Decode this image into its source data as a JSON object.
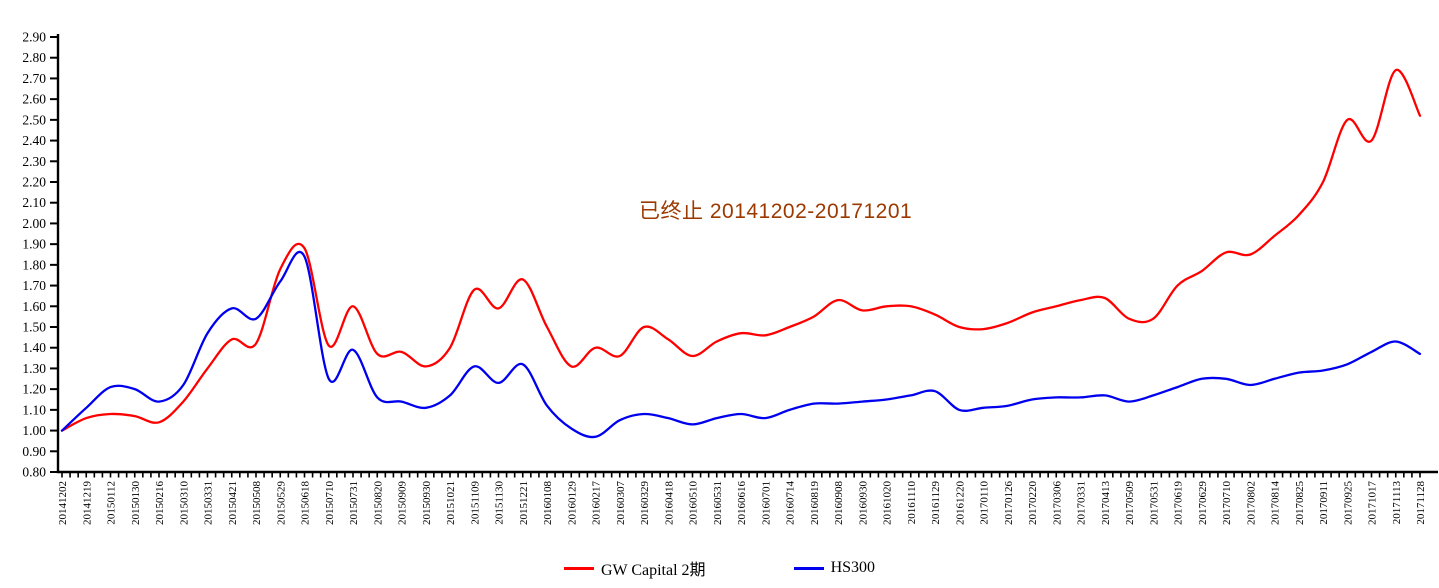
{
  "chart_data": {
    "type": "line",
    "title": "",
    "grid": false,
    "legend_position": "bottom-center",
    "x_label_rotation": -90,
    "ylim": [
      0.8,
      2.9
    ],
    "y_tick_step": 0.1,
    "y_ticks": [
      "2.90",
      "2.80",
      "2.70",
      "2.60",
      "2.50",
      "2.40",
      "2.30",
      "2.20",
      "2.10",
      "2.00",
      "1.90",
      "1.80",
      "1.70",
      "1.60",
      "1.50",
      "1.40",
      "1.30",
      "1.20",
      "1.10",
      "1.00",
      "0.90",
      "0.80"
    ],
    "categories": [
      "20141202",
      "20141219",
      "20150112",
      "20150130",
      "20150216",
      "20150310",
      "20150331",
      "20150421",
      "20150508",
      "20150529",
      "20150618",
      "20150710",
      "20150731",
      "20150820",
      "20150909",
      "20150930",
      "20151021",
      "20151109",
      "20151130",
      "20151221",
      "20160108",
      "20160129",
      "20160217",
      "20160307",
      "20160329",
      "20160418",
      "20160510",
      "20160531",
      "20160616",
      "20160701",
      "20160714",
      "20160819",
      "20160908",
      "20160930",
      "20161020",
      "20161110",
      "20161129",
      "20161220",
      "20170110",
      "20170126",
      "20170220",
      "20170306",
      "20170331",
      "20170413",
      "20170509",
      "20170531",
      "20170619",
      "20170629",
      "20170710",
      "20170802",
      "20170814",
      "20170825",
      "20170911",
      "20170925",
      "20171017",
      "20171113",
      "20171128"
    ],
    "series": [
      {
        "name": "GW Capital 2期",
        "color": "#FF0000",
        "values": [
          1.0,
          1.06,
          1.08,
          1.07,
          1.04,
          1.14,
          1.3,
          1.44,
          1.42,
          1.78,
          1.88,
          1.41,
          1.6,
          1.37,
          1.38,
          1.31,
          1.4,
          1.68,
          1.59,
          1.73,
          1.5,
          1.31,
          1.4,
          1.36,
          1.5,
          1.44,
          1.36,
          1.43,
          1.47,
          1.46,
          1.5,
          1.55,
          1.63,
          1.58,
          1.6,
          1.6,
          1.56,
          1.5,
          1.49,
          1.52,
          1.57,
          1.6,
          1.63,
          1.64,
          1.54,
          1.54,
          1.7,
          1.77,
          1.86,
          1.85,
          1.94,
          2.04,
          2.2,
          2.5,
          2.4,
          2.74,
          2.52
        ]
      },
      {
        "name": "HS300",
        "color": "#0000EE",
        "values": [
          1.0,
          1.11,
          1.21,
          1.2,
          1.14,
          1.22,
          1.47,
          1.59,
          1.54,
          1.72,
          1.84,
          1.25,
          1.39,
          1.16,
          1.14,
          1.11,
          1.17,
          1.31,
          1.23,
          1.32,
          1.12,
          1.01,
          0.97,
          1.05,
          1.08,
          1.06,
          1.03,
          1.06,
          1.08,
          1.06,
          1.1,
          1.13,
          1.13,
          1.14,
          1.15,
          1.17,
          1.19,
          1.1,
          1.11,
          1.12,
          1.15,
          1.16,
          1.16,
          1.17,
          1.14,
          1.17,
          1.21,
          1.25,
          1.25,
          1.22,
          1.25,
          1.28,
          1.29,
          1.32,
          1.38,
          1.43,
          1.37
        ]
      }
    ],
    "annotation": {
      "text": "已终止 20141202-20171201",
      "color": "#9C3900"
    }
  }
}
